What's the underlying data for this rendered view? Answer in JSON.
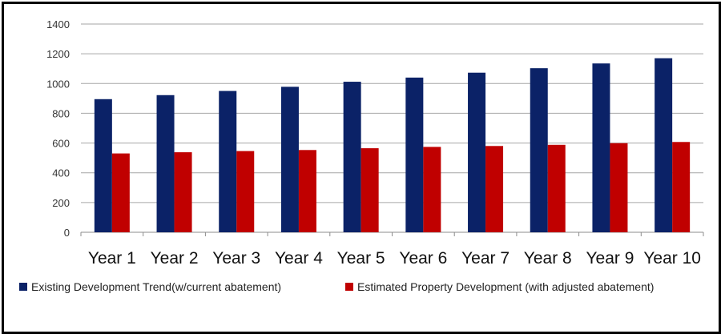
{
  "chart_data": {
    "type": "bar",
    "categories": [
      "Year 1",
      "Year 2",
      "Year 3",
      "Year 4",
      "Year 5",
      "Year 6",
      "Year 7",
      "Year 8",
      "Year 9",
      "Year 10"
    ],
    "series": [
      {
        "name": "Existing Development Trend(w/current abatement)",
        "color": "#0b2267",
        "values": [
          895,
          922,
          950,
          978,
          1012,
          1040,
          1073,
          1103,
          1135,
          1170
        ]
      },
      {
        "name": "Estimated Property Development (with adjusted abatement)",
        "color": "#c00000",
        "values": [
          530,
          538,
          546,
          553,
          565,
          574,
          580,
          588,
          599,
          607
        ]
      }
    ],
    "title": "",
    "xlabel": "",
    "ylabel": "",
    "ylim": [
      0,
      1400
    ],
    "yticks": [
      "0",
      "200",
      "400",
      "600",
      "800",
      "1000",
      "1200",
      "1400"
    ],
    "grid": true,
    "legend_position": "bottom"
  }
}
